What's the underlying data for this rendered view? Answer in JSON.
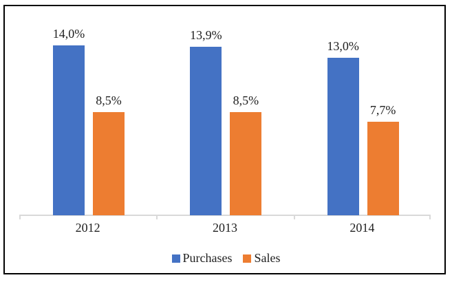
{
  "chart_data": {
    "type": "bar",
    "title": "",
    "xlabel": "",
    "ylabel": "",
    "categories": [
      "2012",
      "2013",
      "2014"
    ],
    "series": [
      {
        "name": "Purchases",
        "color": "#4472C4",
        "values": [
          14.0,
          13.9,
          13.0
        ],
        "data_labels": [
          "14,0%",
          "13,9%",
          "13,0%"
        ]
      },
      {
        "name": "Sales",
        "color": "#ED7D31",
        "values": [
          8.5,
          8.5,
          7.7
        ],
        "data_labels": [
          "8,5%",
          "8,5%",
          "7,7%"
        ]
      }
    ],
    "ylim": [
      0,
      15
    ],
    "grid": false,
    "y_axis_visible": false,
    "legend_position": "bottom",
    "axis_color": "#D9D9D9",
    "text_color": "#1F1F1F",
    "frame_color": "#000000"
  },
  "legend": {
    "items": [
      {
        "label": "Purchases",
        "color": "#4472C4"
      },
      {
        "label": "Sales",
        "color": "#ED7D31"
      }
    ]
  }
}
